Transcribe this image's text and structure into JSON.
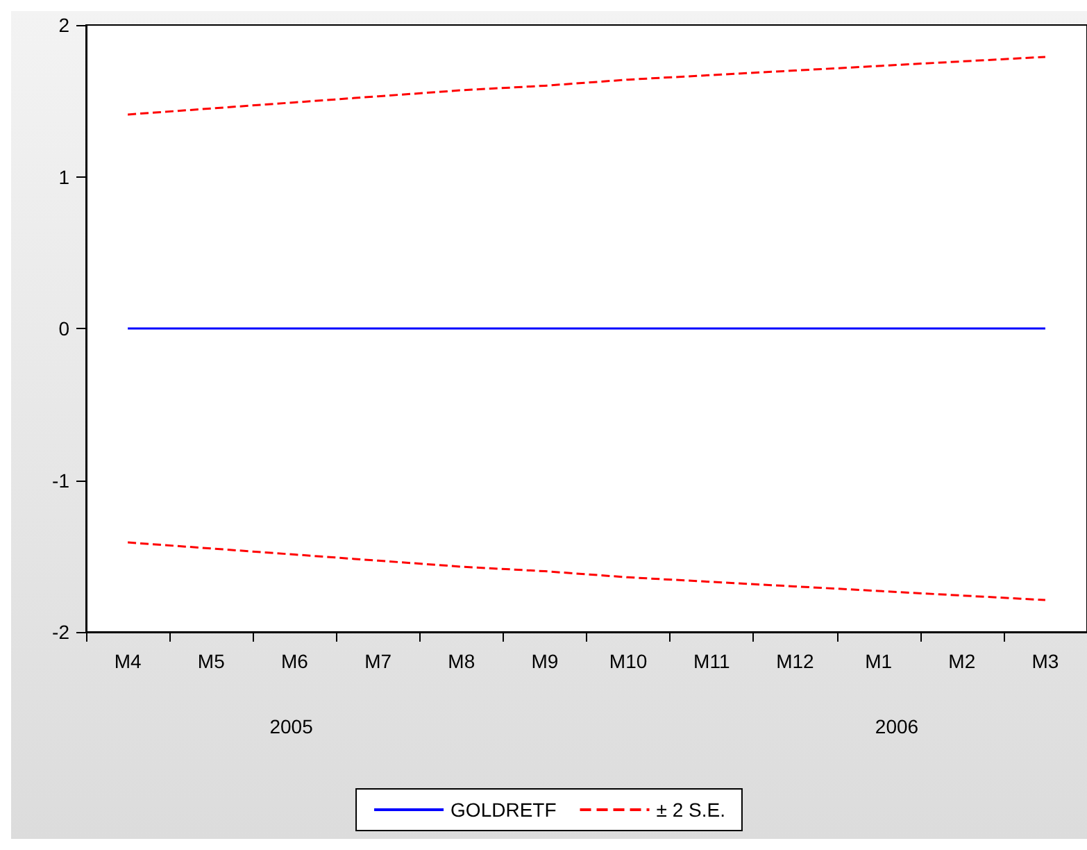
{
  "chart_data": {
    "type": "line",
    "categories": [
      "M4",
      "M5",
      "M6",
      "M7",
      "M8",
      "M9",
      "M10",
      "M11",
      "M12",
      "M1",
      "M2",
      "M3"
    ],
    "series": [
      {
        "name": "GOLDRETF",
        "color": "#0000ff",
        "line_style": "solid",
        "values": [
          0,
          0,
          0,
          0,
          0,
          0,
          0,
          0,
          0,
          0,
          0,
          0
        ]
      },
      {
        "name": "± 2 S.E.",
        "color": "#ff0000",
        "line_style": "dashed",
        "values": [
          1.41,
          1.45,
          1.49,
          1.53,
          1.57,
          1.6,
          1.64,
          1.67,
          1.7,
          1.73,
          1.76,
          1.79
        ]
      },
      {
        "color": "#ff0000",
        "line_style": "dashed",
        "values": [
          -1.41,
          -1.45,
          -1.49,
          -1.53,
          -1.57,
          -1.6,
          -1.64,
          -1.67,
          -1.7,
          -1.73,
          -1.76,
          -1.79
        ]
      }
    ],
    "ylim": [
      -2,
      2
    ],
    "yticks": [
      -2,
      -1,
      0,
      1,
      2
    ],
    "annotations": [
      "2005",
      "2006"
    ],
    "grid": false,
    "legend": "bottom",
    "marker": "none"
  }
}
